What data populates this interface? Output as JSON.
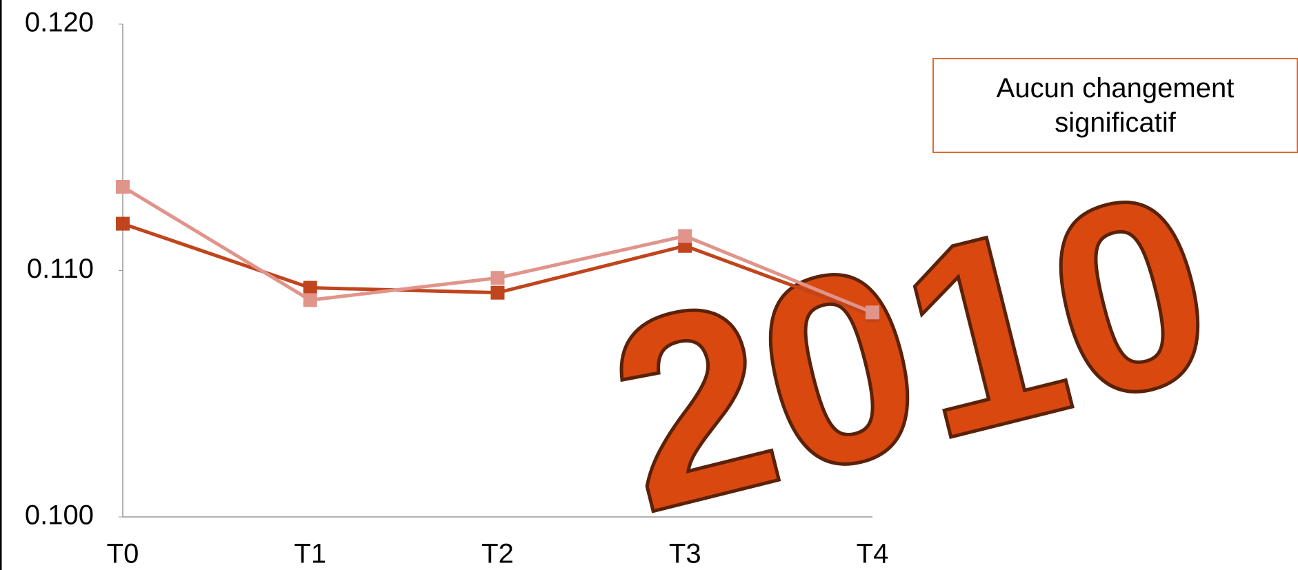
{
  "chart_data": {
    "type": "line",
    "categories": [
      "T0",
      "T1",
      "T2",
      "T3",
      "T4"
    ],
    "series": [
      {
        "color": "#c0441c",
        "values": [
          0.1119,
          0.1093,
          0.1091,
          0.111,
          0.1082
        ]
      },
      {
        "color": "#e0948a",
        "values": [
          0.1134,
          0.1088,
          0.1097,
          0.1114,
          0.1083
        ]
      }
    ],
    "ylim": [
      0.1,
      0.12
    ],
    "yticks": [
      {
        "value": 0.1,
        "label": "0.100"
      },
      {
        "value": 0.11,
        "label": "0.110"
      },
      {
        "value": 0.12,
        "label": "0.120"
      }
    ],
    "annotation": "Aucun changement significatif",
    "watermark": "2010"
  }
}
